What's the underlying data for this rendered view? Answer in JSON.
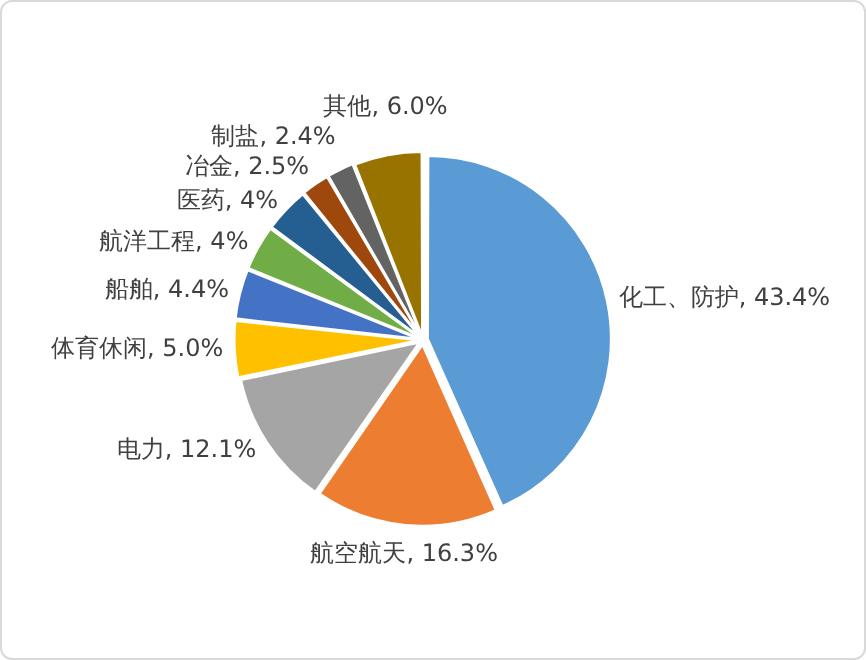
{
  "chart_data": {
    "type": "pie",
    "categories": [
      "化工、防护",
      "航空航天",
      "电力",
      "体育休闲",
      "船舶",
      "航洋工程",
      "医药",
      "冶金",
      "制盐",
      "其他"
    ],
    "values": [
      43.4,
      16.3,
      12.1,
      5.0,
      4.4,
      4,
      4,
      2.5,
      2.4,
      6.0
    ],
    "value_labels": [
      "43.4%",
      "16.3%",
      "12.1%",
      "5.0%",
      "4.4%",
      "4%",
      "4%",
      "2.5%",
      "2.4%",
      "6.0%"
    ],
    "colors": [
      "#5b9bd5",
      "#ed7d31",
      "#a5a5a5",
      "#ffc000",
      "#4472c4",
      "#70ad47",
      "#255e91",
      "#9e480e",
      "#636363",
      "#997300"
    ],
    "legend": false
  }
}
